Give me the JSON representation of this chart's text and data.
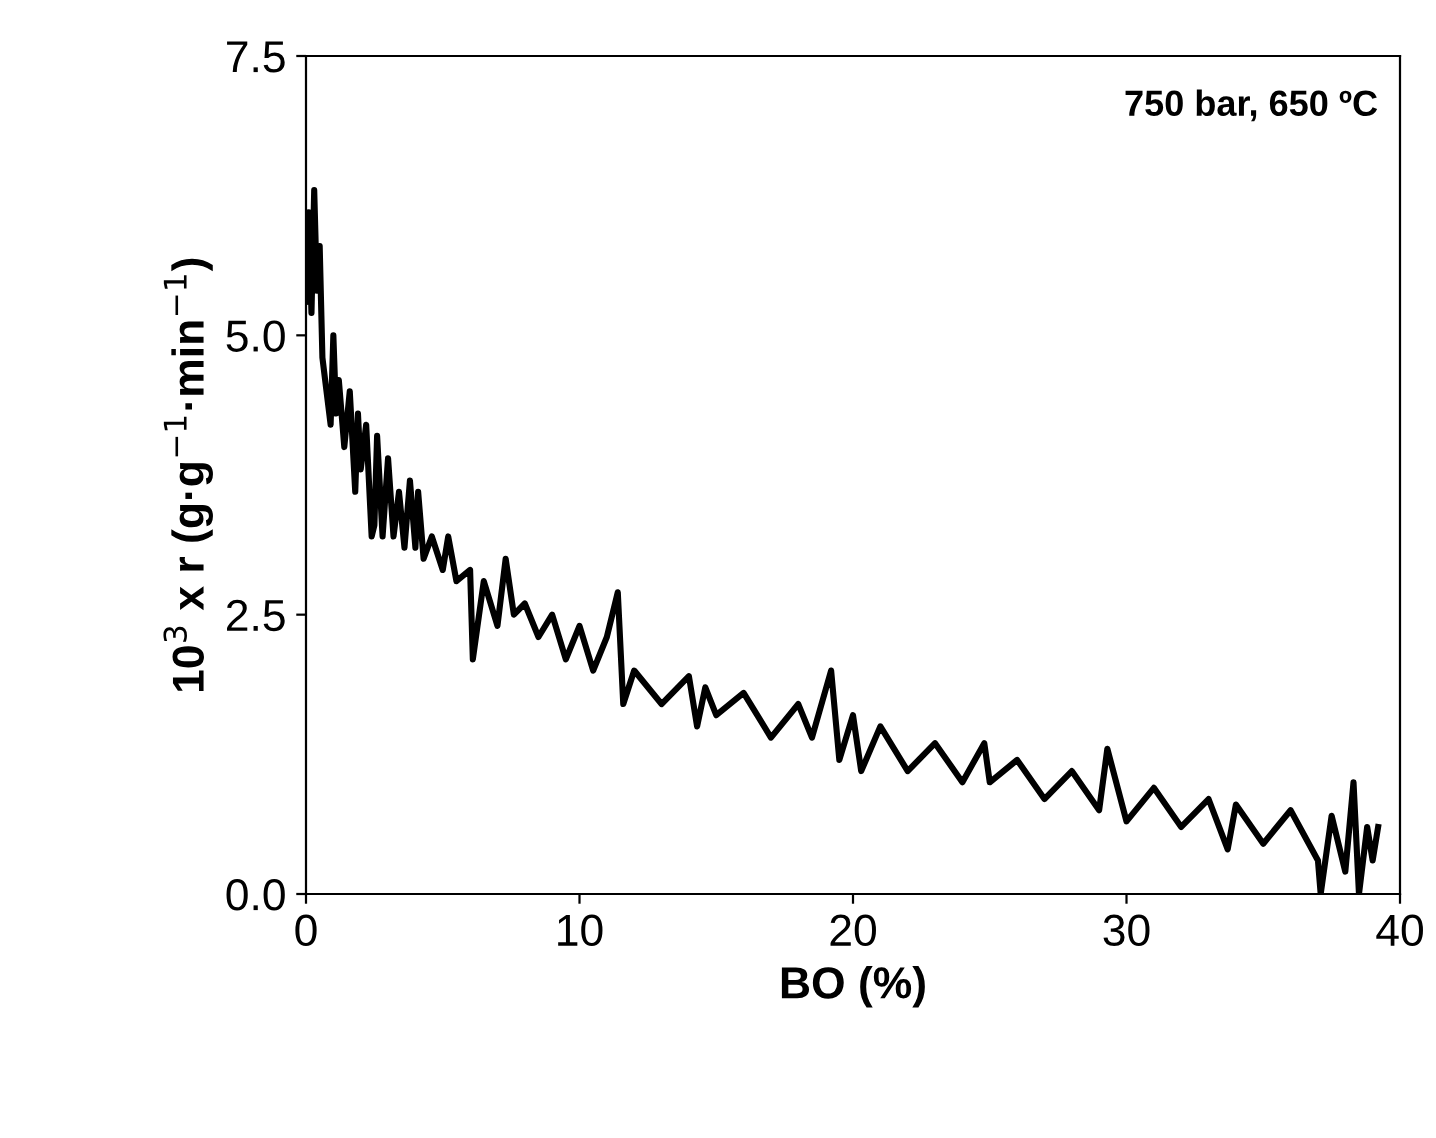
{
  "chart_data": {
    "type": "line",
    "xlabel": "BO (%)",
    "ylabel": "10$^{3}$ x r (g·g$^{−1}$·min$^{−1}$)",
    "annotations": [
      "750 bar, 650 ºC"
    ],
    "xlim": [
      0,
      40
    ],
    "xticks": [
      0,
      10,
      20,
      30,
      40
    ],
    "ylim": [
      0,
      7.5
    ],
    "yticks": [
      {
        "value": 0,
        "label": "0.0"
      },
      {
        "value": 2.5,
        "label": "2.5"
      },
      {
        "value": 5,
        "label": "5.0"
      },
      {
        "value": 7.5,
        "label": "7.5"
      }
    ],
    "grid": false,
    "marker": "none",
    "line_style": "solid",
    "series": [
      {
        "color": "#000000",
        "x": [
          0.0,
          0.1,
          0.2,
          0.3,
          0.4,
          0.5,
          0.6,
          0.7,
          0.9,
          1.0,
          1.1,
          1.2,
          1.4,
          1.6,
          1.8,
          1.9,
          2.0,
          2.2,
          2.4,
          2.5,
          2.6,
          2.8,
          3.0,
          3.2,
          3.4,
          3.6,
          3.8,
          4.0,
          4.1,
          4.3,
          4.6,
          5.0,
          5.2,
          5.5,
          6.0,
          6.1,
          6.5,
          7.0,
          7.3,
          7.6,
          8.0,
          8.5,
          9.0,
          9.5,
          10.0,
          10.5,
          11.0,
          11.4,
          11.6,
          12.0,
          13.0,
          14.0,
          14.3,
          14.6,
          15.0,
          16.0,
          17.0,
          18.0,
          18.5,
          19.2,
          19.5,
          20.0,
          20.3,
          21.0,
          22.0,
          23.0,
          24.0,
          24.8,
          25.0,
          26.0,
          27.0,
          28.0,
          29.0,
          29.3,
          30.0,
          31.0,
          32.0,
          33.0,
          33.7,
          34.0,
          35.0,
          36.0,
          37.0,
          37.1,
          37.5,
          38.0,
          38.3,
          38.5,
          38.8,
          39.0,
          39.2
        ],
        "values": [
          5.3,
          6.1,
          5.2,
          6.3,
          5.4,
          5.8,
          4.8,
          4.6,
          4.2,
          5.0,
          4.3,
          4.6,
          4.0,
          4.5,
          3.6,
          4.3,
          3.8,
          4.2,
          3.2,
          3.3,
          4.1,
          3.2,
          3.9,
          3.2,
          3.6,
          3.1,
          3.7,
          3.1,
          3.6,
          3.0,
          3.2,
          2.9,
          3.2,
          2.8,
          2.9,
          2.1,
          2.8,
          2.4,
          3.0,
          2.5,
          2.6,
          2.3,
          2.5,
          2.1,
          2.4,
          2.0,
          2.3,
          2.7,
          1.7,
          2.0,
          1.7,
          1.95,
          1.5,
          1.85,
          1.6,
          1.8,
          1.4,
          1.7,
          1.4,
          2.0,
          1.2,
          1.6,
          1.1,
          1.5,
          1.1,
          1.35,
          1.0,
          1.35,
          1.0,
          1.2,
          0.85,
          1.1,
          0.75,
          1.3,
          0.65,
          0.95,
          0.6,
          0.85,
          0.4,
          0.8,
          0.45,
          0.75,
          0.3,
          0.0,
          0.7,
          0.2,
          1.0,
          0.0,
          0.6,
          0.3,
          0.6
        ]
      }
    ]
  }
}
